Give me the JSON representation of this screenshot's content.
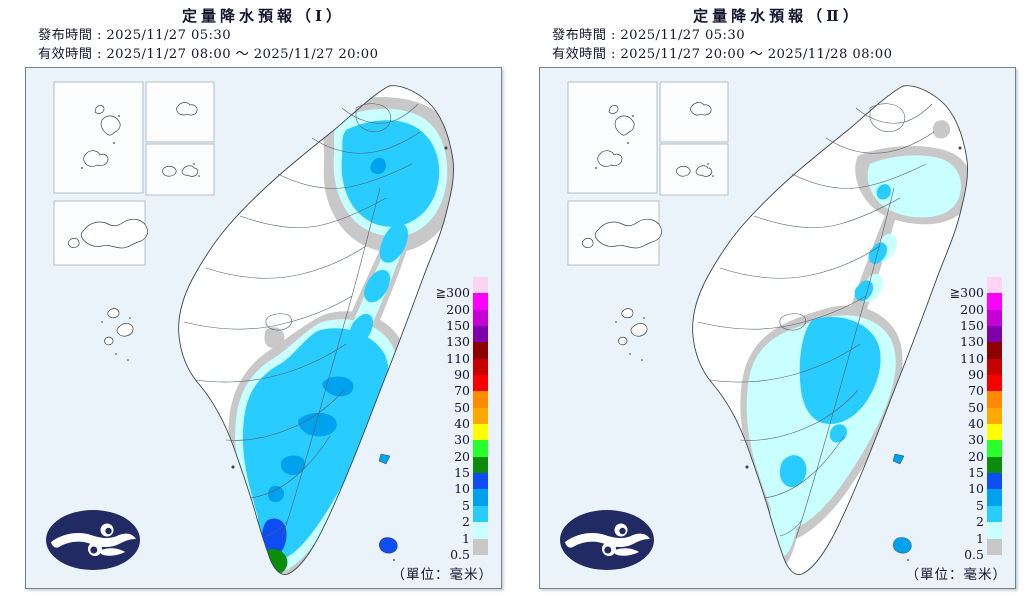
{
  "colors": {
    "page_bg": "#FFFFFF",
    "panel_bg": "#E9F3F9",
    "panel_border": "#76818A",
    "inset_bg": "#FBFDFF",
    "inset_border": "#A6B1B9",
    "land": "#FFFFFF",
    "coast": "#39434D",
    "boundary": "#55606B",
    "text_dark": "#14142E",
    "logo_navy": "#222A63",
    "map_gray": "#C8C8C8",
    "map_lightcyan": "#C9FFFF",
    "map_cyan": "#29CCFF",
    "map_sky": "#00A2F0",
    "map_blue": "#0D4DF2",
    "map_green": "#0B8C0B"
  },
  "panels": [
    {
      "title": "定量降水預報（Ⅰ）",
      "issued_line": "發布時間 : 2025/11/27 05:30",
      "valid_line": "有效時間 : 2025/11/27 08:00 ～ 2025/11/27 20:00",
      "unit_note": "（單位：毫米）"
    },
    {
      "title": "定量降水預報（Ⅱ）",
      "issued_line": "發布時間 : 2025/11/27 05:30",
      "valid_line": "有效時間 : 2025/11/27 20:00 ～ 2025/11/28 08:00",
      "unit_note": "（單位：毫米）"
    }
  ],
  "legend": {
    "gte_prefix": "≧",
    "unit": "毫米",
    "levels": [
      {
        "value": "300",
        "gte": true,
        "color": "#FFD3F3"
      },
      {
        "value": "200",
        "color": "#FF00FF"
      },
      {
        "value": "150",
        "color": "#C400D4"
      },
      {
        "value": "130",
        "color": "#7D00A8"
      },
      {
        "value": "110",
        "color": "#8C0000"
      },
      {
        "value": "90",
        "color": "#C80000"
      },
      {
        "value": "70",
        "color": "#F80000"
      },
      {
        "value": "50",
        "color": "#FF8A00"
      },
      {
        "value": "40",
        "color": "#FFA900"
      },
      {
        "value": "30",
        "color": "#FFFF00"
      },
      {
        "value": "20",
        "color": "#2BFF2B"
      },
      {
        "value": "15",
        "color": "#0B8C0B"
      },
      {
        "value": "10",
        "color": "#0D4DF2"
      },
      {
        "value": "5",
        "color": "#00A2F0"
      },
      {
        "value": "2",
        "color": "#29CCFF"
      },
      {
        "value": "1",
        "color": "#C9FFFF"
      },
      {
        "value": "0.5",
        "color": "#C8C8C8"
      }
    ]
  }
}
